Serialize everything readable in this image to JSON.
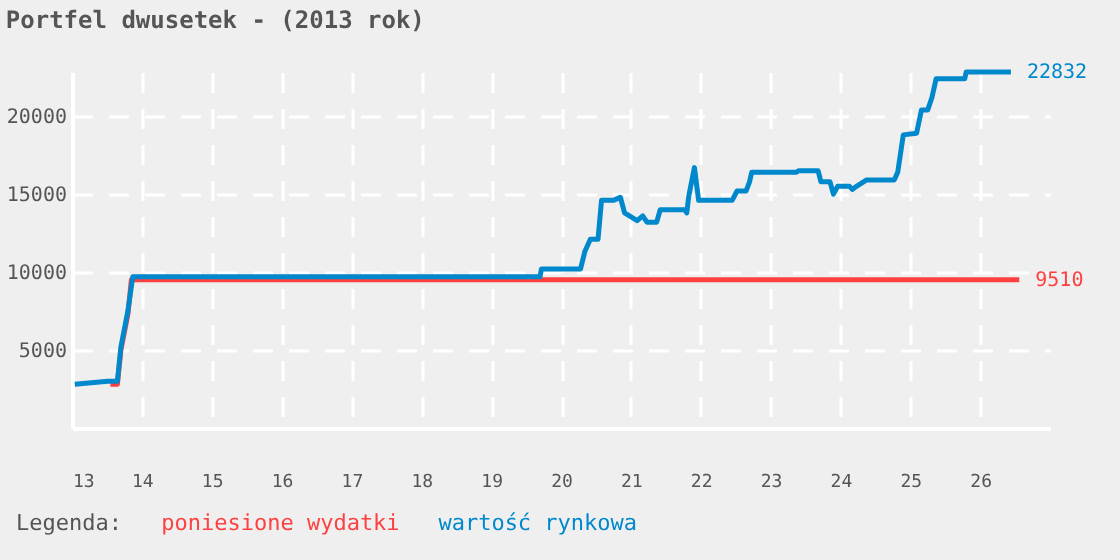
{
  "chart_data": {
    "type": "line",
    "title": "Portfel dwusetek - (2013 rok)",
    "legend_title": "Legenda:",
    "legend": "bottom",
    "grid": true,
    "line_style": "solid",
    "xlim": [
      13,
      27
    ],
    "xticks": [
      13,
      14,
      15,
      16,
      17,
      18,
      19,
      20,
      21,
      22,
      23,
      24,
      25,
      26
    ],
    "ylim": [
      0,
      22832
    ],
    "yticks": [
      5000,
      10000,
      15000,
      20000
    ],
    "series": [
      {
        "name": "poniesione wydatki",
        "color": "#ff4040",
        "x": [
          13.55,
          13.65,
          13.7,
          13.8,
          13.85,
          26.56
        ],
        "values": [
          2800,
          2800,
          5000,
          7300,
          9510,
          9510
        ],
        "value_labels": [
          null,
          null,
          null,
          null,
          null,
          "9510"
        ]
      },
      {
        "name": "wartość rynkowa",
        "color": "#0088cc",
        "x": [
          13.04,
          13.51,
          13.65,
          13.7,
          13.8,
          13.87,
          19.7,
          19.72,
          20.28,
          20.34,
          20.42,
          20.53,
          20.58,
          20.75,
          20.85,
          20.91,
          21.09,
          21.17,
          21.23,
          21.37,
          21.42,
          21.77,
          21.8,
          21.83,
          21.91,
          21.97,
          22.45,
          22.52,
          22.65,
          22.7,
          22.73,
          23.37,
          23.4,
          23.68,
          23.72,
          23.85,
          23.9,
          23.96,
          24.13,
          24.17,
          24.23,
          24.37,
          24.77,
          24.82,
          24.9,
          25.09,
          25.16,
          25.25,
          25.31,
          25.37,
          25.78,
          25.8,
          26.44
        ],
        "values": [
          2800,
          3000,
          3000,
          5200,
          7500,
          9700,
          9700,
          10200,
          10200,
          11300,
          12100,
          12100,
          14600,
          14600,
          14800,
          13800,
          13300,
          13600,
          13200,
          13200,
          14000,
          14000,
          13800,
          14900,
          16700,
          14600,
          14600,
          15200,
          15200,
          15800,
          16400,
          16400,
          16500,
          16500,
          15800,
          15800,
          15000,
          15500,
          15500,
          15300,
          15500,
          15900,
          15900,
          16400,
          18800,
          18900,
          20400,
          20400,
          21200,
          22400,
          22400,
          22832,
          22832
        ],
        "value_labels": [
          null,
          null,
          null,
          null,
          null,
          null,
          null,
          null,
          null,
          null,
          null,
          null,
          null,
          null,
          null,
          null,
          null,
          null,
          null,
          null,
          null,
          null,
          null,
          null,
          null,
          null,
          null,
          null,
          null,
          null,
          null,
          null,
          null,
          null,
          null,
          null,
          null,
          null,
          null,
          null,
          null,
          null,
          null,
          null,
          null,
          null,
          null,
          null,
          null,
          null,
          null,
          null,
          "22832"
        ]
      }
    ]
  }
}
